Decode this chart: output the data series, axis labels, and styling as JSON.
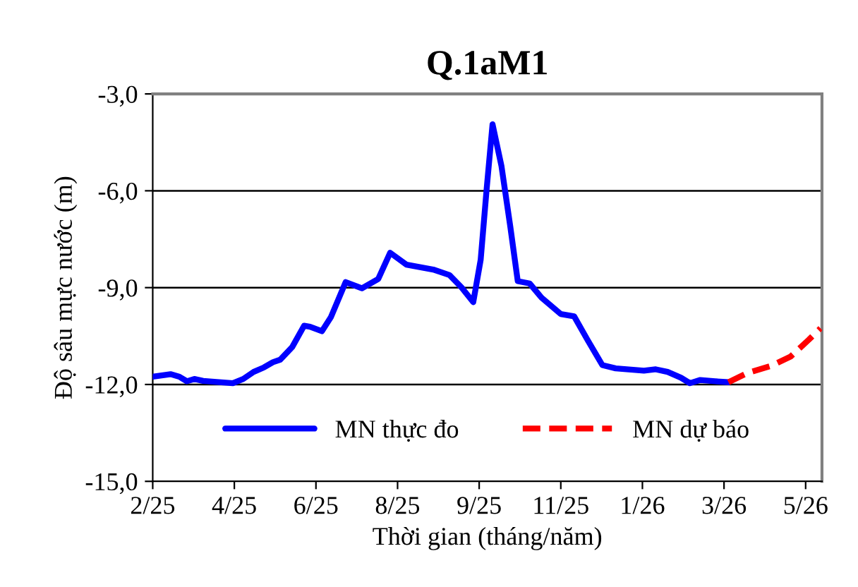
{
  "chart_data": {
    "type": "line",
    "title": "Q.1aM1",
    "xlabel": "Thời gian (tháng/năm)",
    "ylabel": "Độ sâu mực nước (m)",
    "series": [
      {
        "name": "MN thực đo",
        "color": "#0000ff",
        "line_style": "solid",
        "x": [
          "2025-02-20",
          "2025-03-04",
          "2025-03-10",
          "2025-03-15",
          "2025-03-20",
          "2025-03-26",
          "2025-04-04",
          "2025-04-15",
          "2025-04-22",
          "2025-04-29",
          "2025-05-06",
          "2025-05-12",
          "2025-05-17",
          "2025-05-25",
          "2025-06-02",
          "2025-06-06",
          "2025-06-14",
          "2025-06-20",
          "2025-06-30",
          "2025-07-11",
          "2025-07-22",
          "2025-07-30",
          "2025-08-10",
          "2025-08-28",
          "2025-09-08",
          "2025-09-16",
          "2025-09-24",
          "2025-09-29",
          "2025-10-03",
          "2025-10-07",
          "2025-10-13",
          "2025-10-19",
          "2025-10-24",
          "2025-11-01",
          "2025-11-09",
          "2025-11-22",
          "2025-12-01",
          "2025-12-10",
          "2025-12-20",
          "2025-12-29",
          "2026-01-17",
          "2026-01-25",
          "2026-02-02",
          "2026-02-11",
          "2026-02-17",
          "2026-02-24",
          "2026-03-06",
          "2026-03-15"
        ],
        "values": [
          -11.76,
          -11.68,
          -11.76,
          -11.9,
          -11.83,
          -11.89,
          -11.92,
          -11.96,
          -11.83,
          -11.61,
          -11.47,
          -11.31,
          -11.23,
          -10.84,
          -10.18,
          -10.21,
          -10.35,
          -9.92,
          -8.83,
          -9.02,
          -8.73,
          -7.92,
          -8.29,
          -8.44,
          -8.61,
          -8.99,
          -9.45,
          -8.14,
          -5.96,
          -3.94,
          -5.23,
          -7.12,
          -8.8,
          -8.87,
          -9.31,
          -9.82,
          -9.89,
          -10.62,
          -11.4,
          -11.5,
          -11.57,
          -11.53,
          -11.61,
          -11.79,
          -11.96,
          -11.86,
          -11.9,
          -11.93
        ]
      },
      {
        "name": "MN dự báo",
        "color": "#ff0000",
        "line_style": "dashed",
        "x": [
          "2026-03-15",
          "2026-03-28",
          "2026-04-13",
          "2026-04-26",
          "2026-05-08",
          "2026-05-16"
        ],
        "values": [
          -11.93,
          -11.64,
          -11.42,
          -11.13,
          -10.62,
          -10.26
        ]
      }
    ],
    "xlim": [
      "2025-02-20",
      "2026-05-17"
    ],
    "xticks": [
      {
        "value": "2025-02-20",
        "label": "2/25"
      },
      {
        "value": "2025-04-16",
        "label": "4/25"
      },
      {
        "value": "2025-06-10",
        "label": "6/25"
      },
      {
        "value": "2025-08-04",
        "label": "8/25"
      },
      {
        "value": "2025-09-28",
        "label": "9/25"
      },
      {
        "value": "2025-11-22",
        "label": "11/25"
      },
      {
        "value": "2026-01-16",
        "label": "1/26"
      },
      {
        "value": "2026-03-12",
        "label": "3/26"
      },
      {
        "value": "2026-05-06",
        "label": "5/26"
      }
    ],
    "ylim": [
      -15,
      -3
    ],
    "yticks": [
      {
        "value": -15,
        "label": "-15,0"
      },
      {
        "value": -12,
        "label": "-12,0"
      },
      {
        "value": -9,
        "label": "-9,0"
      },
      {
        "value": -6,
        "label": "-6,0"
      },
      {
        "value": -3,
        "label": "-3,0"
      }
    ],
    "grid": "y",
    "legend": "bottom"
  }
}
